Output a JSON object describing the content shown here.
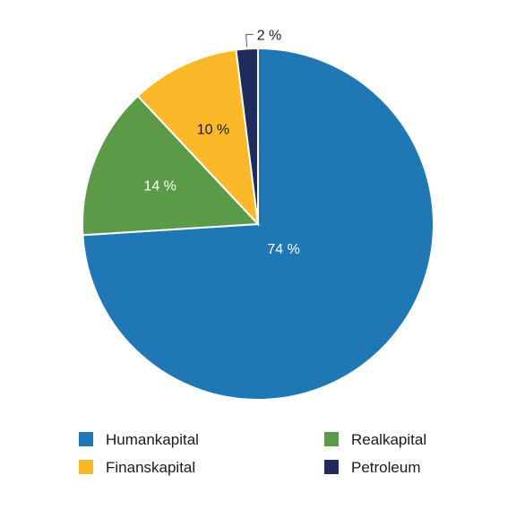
{
  "chart_data": {
    "type": "pie",
    "title": "",
    "start_angle_deg": 0,
    "direction": "clockwise",
    "slices": [
      {
        "name": "Humankapital",
        "value": 74,
        "label": "74 %",
        "color": "#1f77b4",
        "label_color": "#ffffff"
      },
      {
        "name": "Realkapital",
        "value": 14,
        "label": "14 %",
        "color": "#5b9a47",
        "label_color": "#ffffff"
      },
      {
        "name": "Finanskapital",
        "value": 10,
        "label": "10 %",
        "color": "#fbb829",
        "label_color": "#1a1a1a"
      },
      {
        "name": "Petroleum",
        "value": 2,
        "label": "2 %",
        "color": "#1f2b5c",
        "label_color": "#1a1a1a"
      }
    ],
    "legend_placement": "bottom",
    "legend_order": [
      "Humankapital",
      "Realkapital",
      "Finanskapital",
      "Petroleum"
    ]
  }
}
